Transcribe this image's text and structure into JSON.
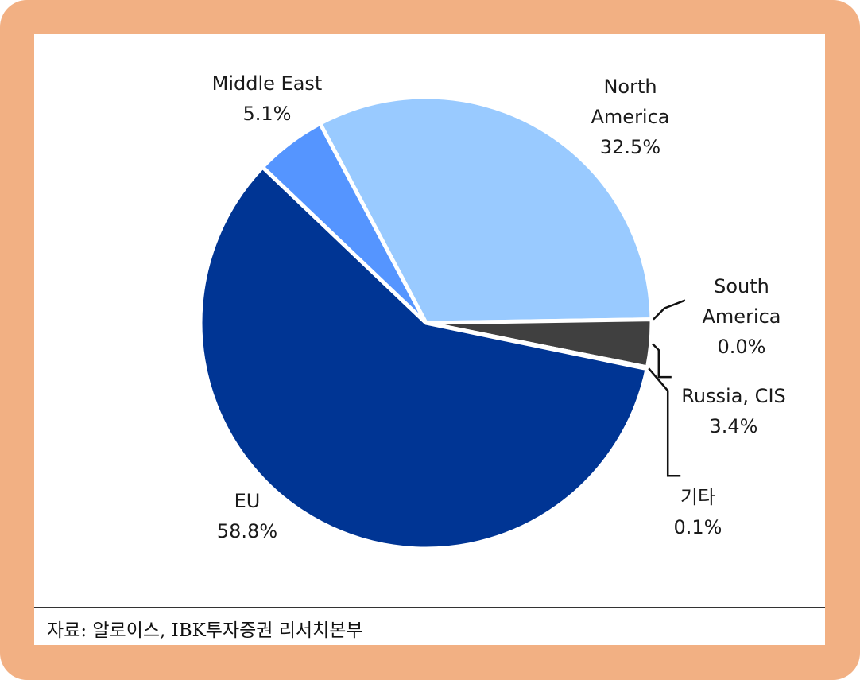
{
  "chart_data": {
    "type": "pie",
    "title": "",
    "slices": [
      {
        "label": [
          "North",
          "America"
        ],
        "value": 32.5,
        "display": "32.5%",
        "color": "#99caff"
      },
      {
        "label": [
          "South",
          "America"
        ],
        "value": 0.0,
        "display": "0.0%",
        "color": "#5a5a5a"
      },
      {
        "label": [
          "Russia, CIS"
        ],
        "value": 3.4,
        "display": "3.4%",
        "color": "#404040"
      },
      {
        "label": [
          "기타"
        ],
        "value": 0.1,
        "display": "0.1%",
        "color": "#7aa6e6"
      },
      {
        "label": [
          "EU"
        ],
        "value": 58.8,
        "display": "58.8%",
        "color": "#003594"
      },
      {
        "label": [
          "Middle East"
        ],
        "value": 5.1,
        "display": "5.1%",
        "color": "#5595ff"
      }
    ]
  },
  "source": "자료: 알로이스, IBK투자증권 리서치본부"
}
